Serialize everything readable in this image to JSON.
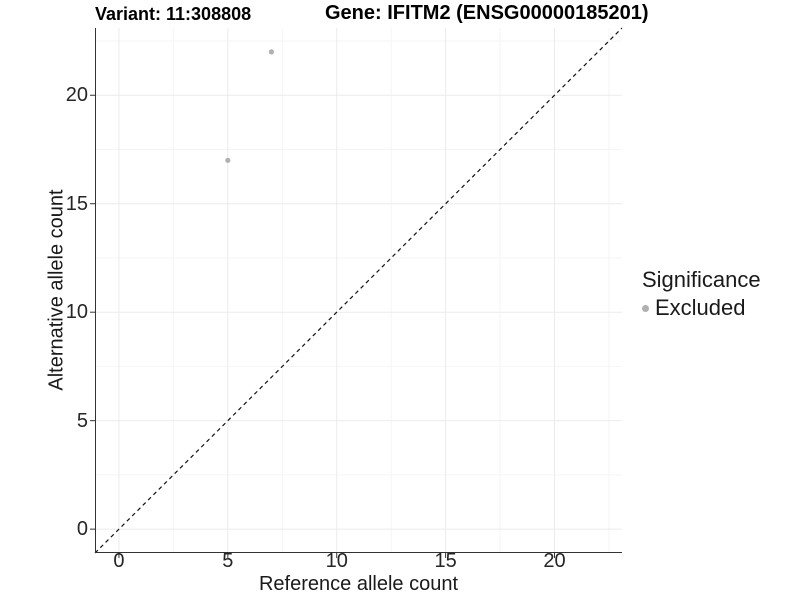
{
  "titles": {
    "left": "Variant: 11:308808",
    "right": "Gene: IFITM2 (ENSG00000185201)"
  },
  "legend": {
    "title": "Significance",
    "items": [
      {
        "label": "Excluded",
        "color": "#b0b0b0"
      }
    ]
  },
  "chart_data": {
    "type": "scatter",
    "title": "Variant: 11:308808",
    "subtitle": "Gene: IFITM2 (ENSG00000185201)",
    "xlabel": "Reference allele count",
    "ylabel": "Alternative allele count",
    "xlim": [
      -1.1,
      23.1
    ],
    "ylim": [
      -1.1,
      23.1
    ],
    "x_ticks": [
      0,
      5,
      10,
      15,
      20
    ],
    "y_ticks": [
      0,
      5,
      10,
      15,
      20
    ],
    "x_minor_ticks": [
      2.5,
      7.5,
      12.5,
      17.5,
      22.5
    ],
    "y_minor_ticks": [
      2.5,
      7.5,
      12.5,
      17.5,
      22.5
    ],
    "grid": true,
    "legend_position": "right",
    "series": [
      {
        "name": "Excluded",
        "color": "#b0b0b0",
        "marker": "circle",
        "points": [
          {
            "x": 5,
            "y": 17
          },
          {
            "x": 7,
            "y": 22
          }
        ]
      }
    ],
    "reference_line": {
      "type": "identity y=x",
      "slope": 1,
      "intercept": 0,
      "linestyle": "dashed",
      "color": "#111111"
    }
  },
  "colors": {
    "background": "#ffffff",
    "axis": "#333333",
    "grid_major": "#ebebeb",
    "grid_minor": "#f5f5f5",
    "tick_text": "#262626",
    "dashed_line": "#111111"
  }
}
